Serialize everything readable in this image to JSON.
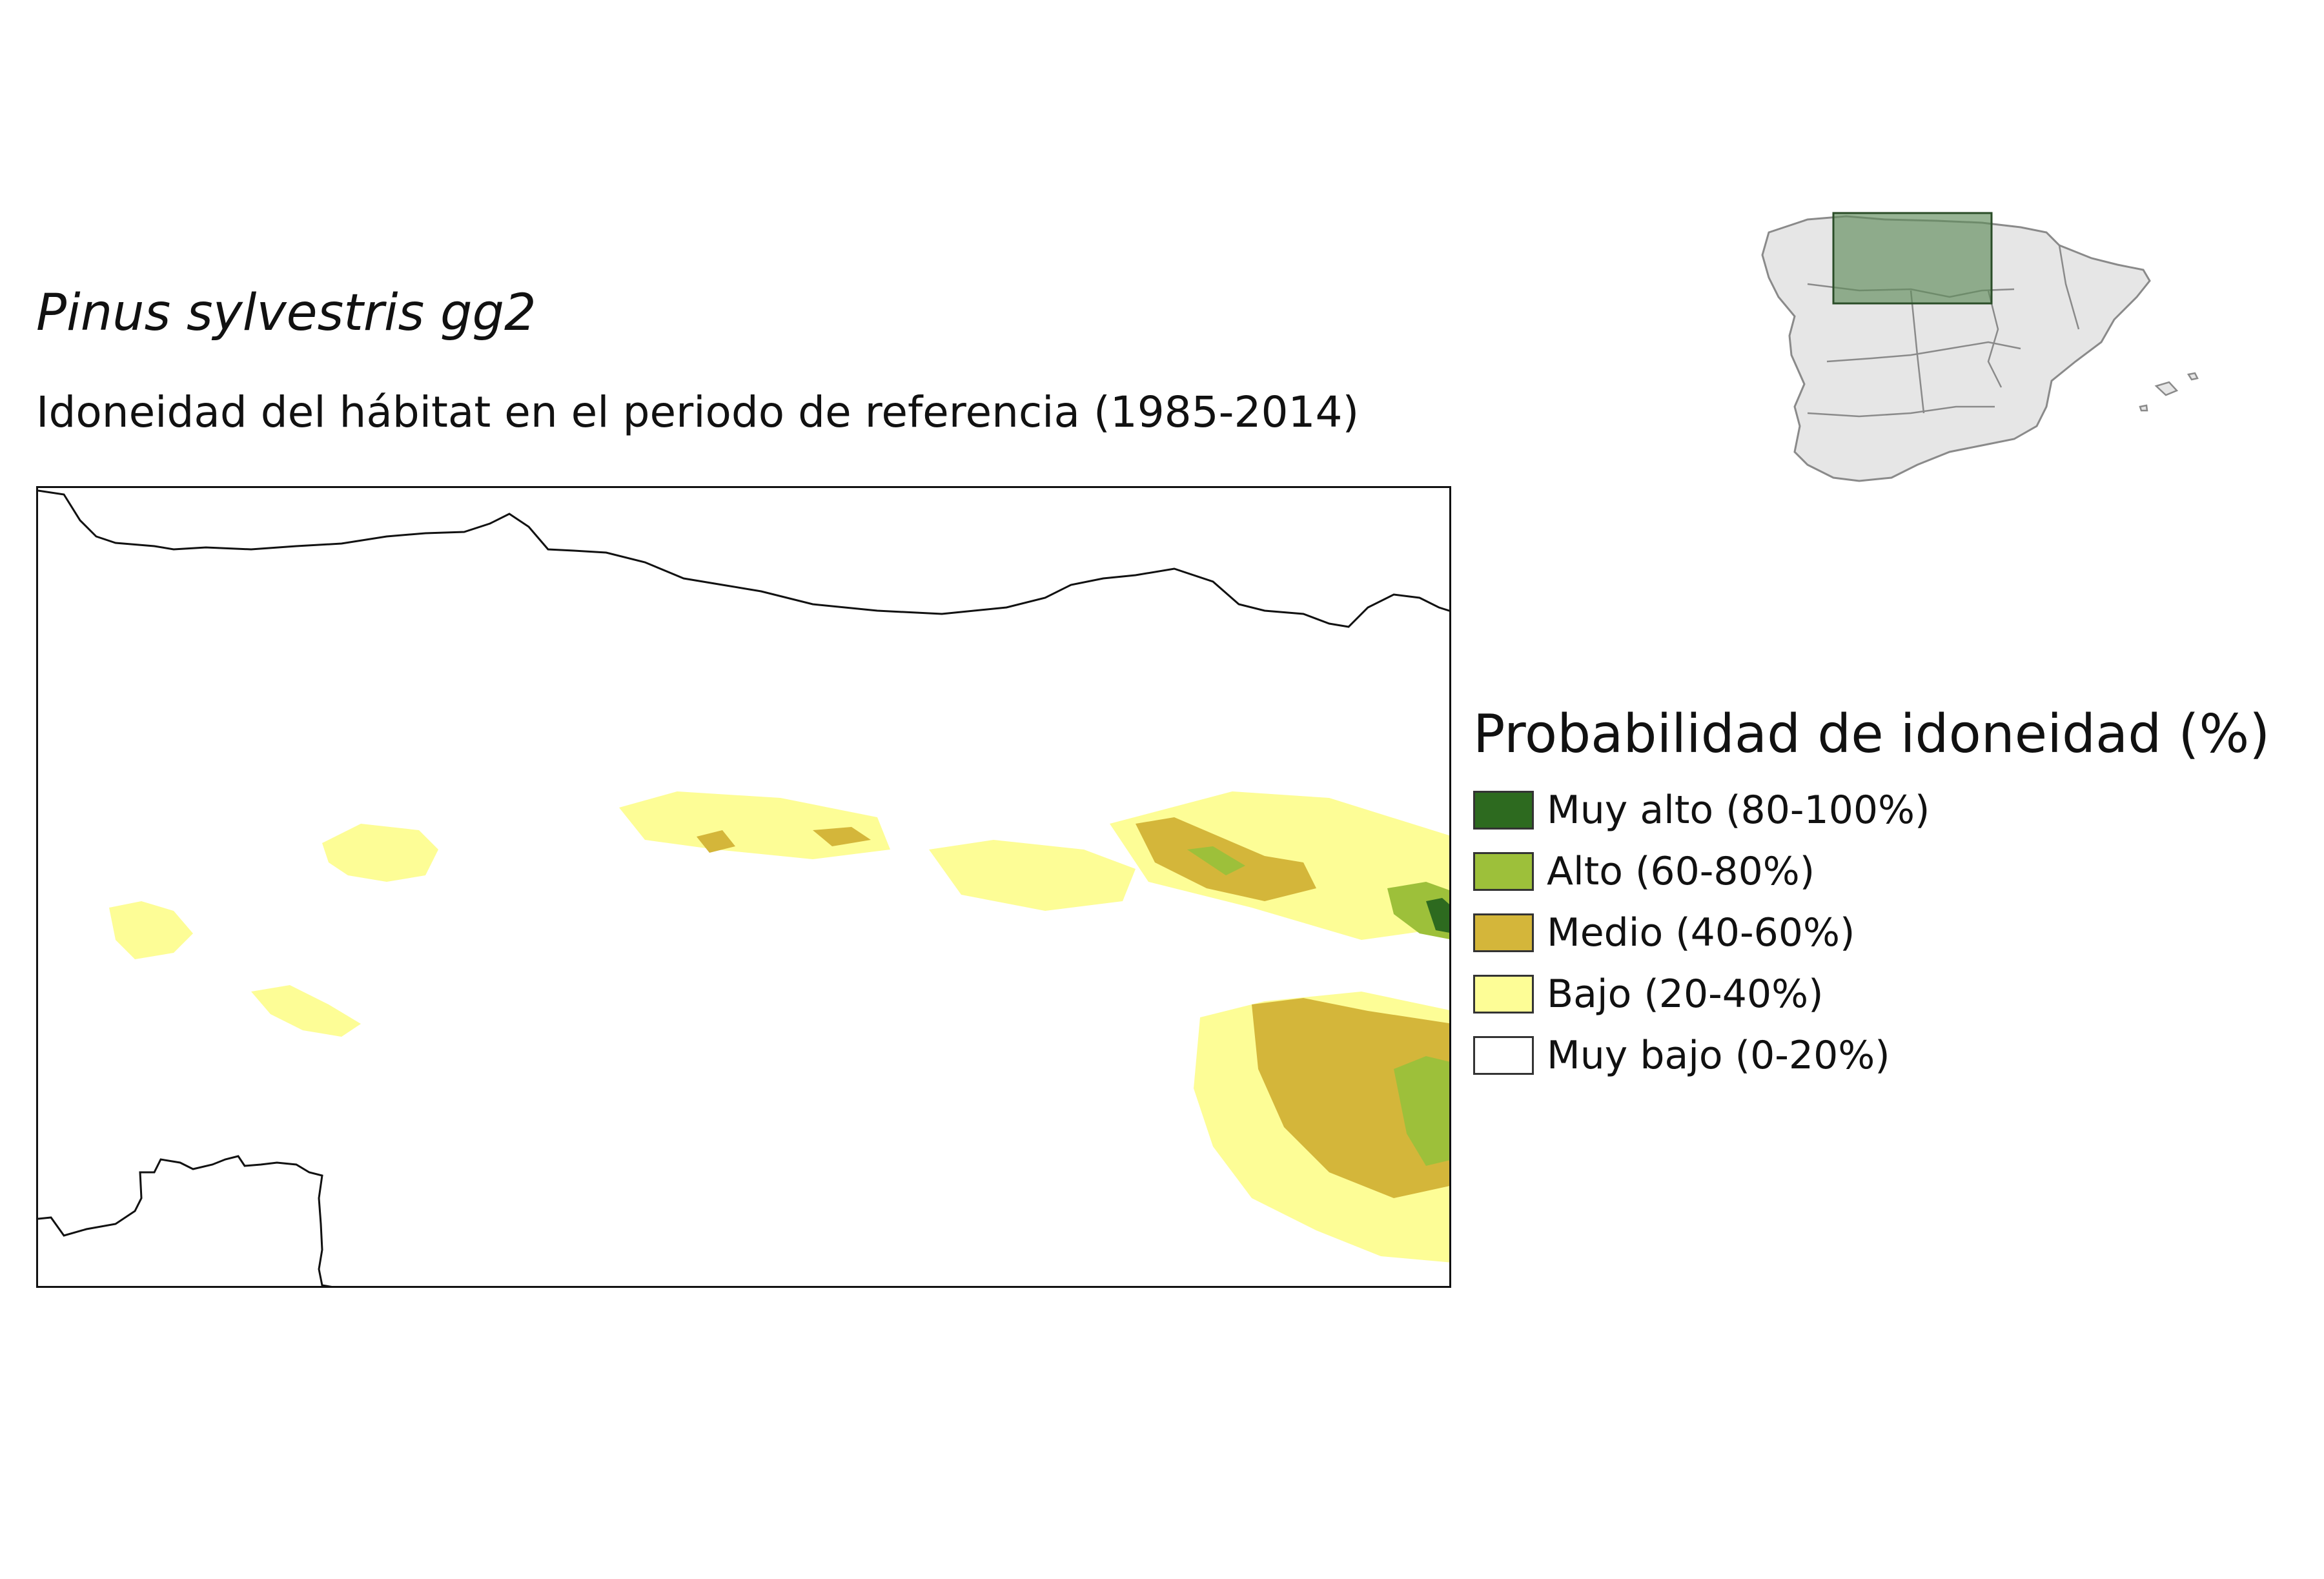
{
  "title": "Pinus sylvestris gg2",
  "subtitle": "Idoneidad del hábitat en el periodo de referencia (1985-2014)",
  "legend": {
    "title": "Probabilidad de idoneidad (%)",
    "items": [
      {
        "label": "Muy alto (80-100%)",
        "color": "#2d6a1f"
      },
      {
        "label": "Alto (60-80%)",
        "color": "#9dc03a"
      },
      {
        "label": "Medio (40-60%)",
        "color": "#d4b63a"
      },
      {
        "label": "Bajo (20-40%)",
        "color": "#fdfd96"
      },
      {
        "label": "Muy bajo (0-20%)",
        "color": "#ffffff"
      }
    ]
  },
  "colors": {
    "coastline": "#111111",
    "locator_fill": "#e6e6e6",
    "locator_stroke": "#8a8a8a",
    "locator_highlight": "#5f8c5a"
  }
}
